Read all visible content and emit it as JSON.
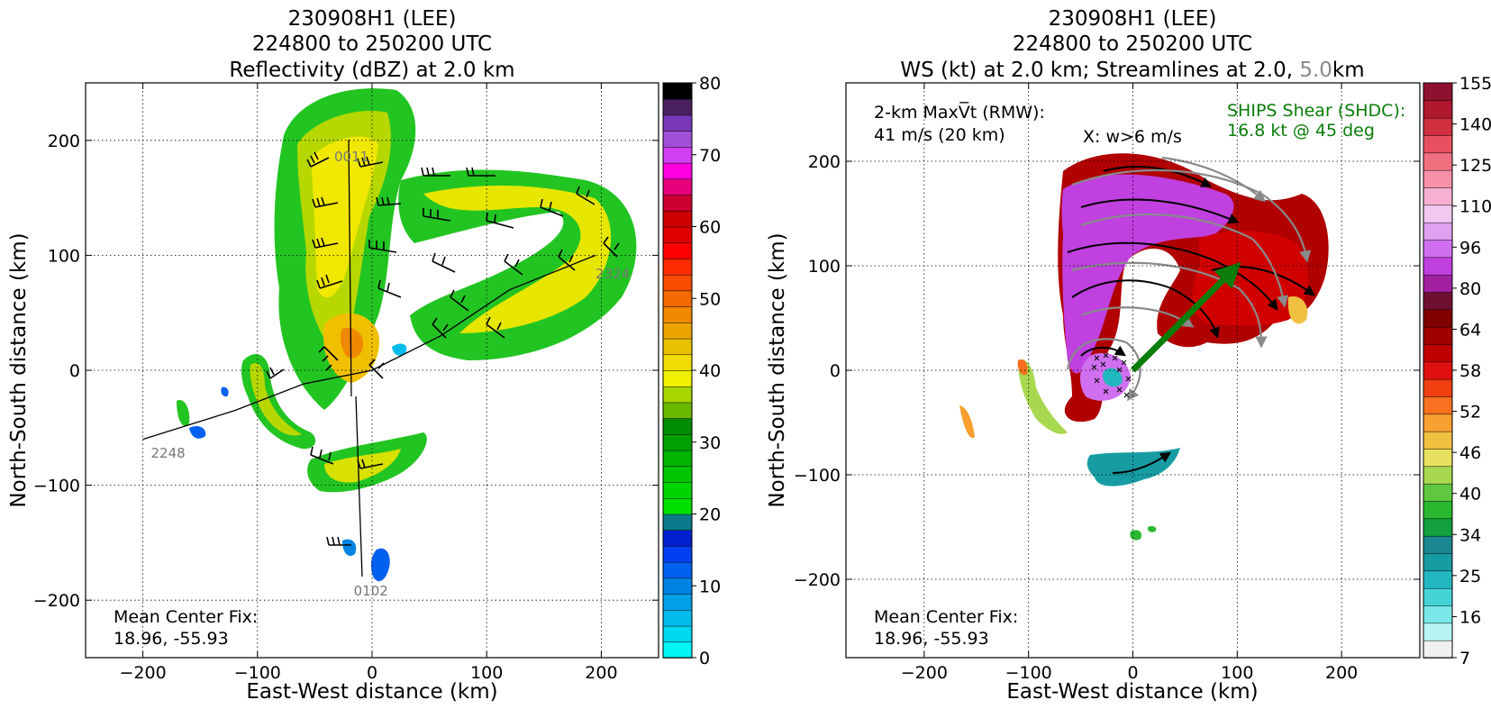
{
  "colors": {
    "tick_grey": "#777777",
    "shear_green": "#0a7d0a",
    "streamline_grey": "#8a8a8a"
  },
  "chart_data": [
    {
      "type": "heatmap",
      "title_lines": [
        "230908H1 (LEE)",
        "224800 to 250200 UTC",
        "Reflectivity (dBZ) at 2.0 km"
      ],
      "xlabel": "East-West distance (km)",
      "ylabel": "North-South distance (km)",
      "xlim": [
        -250,
        250
      ],
      "ylim": [
        -250,
        250
      ],
      "xticks": [
        -200,
        -100,
        0,
        100,
        200
      ],
      "yticks": [
        -200,
        -100,
        0,
        100,
        200
      ],
      "xtick_labels": [
        "−200",
        "−100",
        "0",
        "100",
        "200"
      ],
      "ytick_labels": [
        "−200",
        "−100",
        "0",
        "100",
        "200"
      ],
      "grid": true,
      "colorbar": {
        "label_values": [
          0,
          10,
          20,
          30,
          40,
          50,
          60,
          70,
          80
        ],
        "label_texts": [
          "0",
          "10",
          "20",
          "30",
          "40",
          "50",
          "60",
          "70",
          "80"
        ],
        "colors": [
          "#00f5f5",
          "#00d8f0",
          "#00bcec",
          "#00a0e8",
          "#0084e4",
          "#0060f0",
          "#0040f0",
          "#0020d0",
          "#0a7a8a",
          "#00e000",
          "#00d400",
          "#00c400",
          "#00b400",
          "#00a000",
          "#008c00",
          "#6ab800",
          "#a8d400",
          "#f0f000",
          "#f0dc00",
          "#e8c000",
          "#eca400",
          "#f08800",
          "#f46a00",
          "#f84c00",
          "#fc2c00",
          "#ff0000",
          "#e00000",
          "#cc0000",
          "#cc0030",
          "#e8007c",
          "#ff00e0",
          "#d040f0",
          "#a050d8",
          "#7838b8",
          "#4a2060",
          "#000000"
        ]
      },
      "track_labels": [
        {
          "text": "2248",
          "x": -193,
          "y": -76
        },
        {
          "text": "0102",
          "x": -16,
          "y": -196
        },
        {
          "text": "2324",
          "x": 195,
          "y": 80
        },
        {
          "text": "0011",
          "x": -33,
          "y": 182
        }
      ],
      "track_path": [
        [
          -200,
          -60
        ],
        [
          -120,
          -35
        ],
        [
          -60,
          -12
        ],
        [
          0,
          0
        ],
        [
          60,
          30
        ],
        [
          120,
          70
        ],
        [
          195,
          100
        ]
      ],
      "center_fix_lines": [
        "Mean Center Fix:",
        "18.96, -55.93"
      ]
    },
    {
      "type": "heatmap",
      "title_lines": [
        "230908H1 (LEE)",
        "224800 to 250200 UTC"
      ],
      "title_line3_parts": [
        "WS (kt) at 2.0 km; Streamlines at 2.0, ",
        "5.0",
        "km"
      ],
      "xlabel": "East-West distance (km)",
      "ylabel": "North-South distance (km)",
      "xlim": [
        -275,
        275
      ],
      "ylim": [
        -275,
        275
      ],
      "xticks": [
        -200,
        -100,
        0,
        100,
        200
      ],
      "yticks": [
        -200,
        -100,
        0,
        100,
        200
      ],
      "xtick_labels": [
        "−200",
        "−100",
        "0",
        "100",
        "200"
      ],
      "ytick_labels": [
        "−200",
        "−100",
        "0",
        "100",
        "200"
      ],
      "grid": true,
      "colorbar": {
        "label_values": [
          7,
          16,
          25,
          34,
          40,
          46,
          52,
          58,
          64,
          80,
          96,
          110,
          125,
          140,
          155
        ],
        "label_texts": [
          "7",
          "16",
          "25",
          "34",
          "40",
          "46",
          "52",
          "58",
          "64",
          "80",
          "96",
          "110",
          "125",
          "140",
          "155"
        ],
        "colors": [
          "#f0f0f0",
          "#b8f4f4",
          "#7ae8e8",
          "#44d4d8",
          "#22b8c0",
          "#189ca4",
          "#1a8890",
          "#12a040",
          "#2ab830",
          "#60c840",
          "#a8d850",
          "#e8e060",
          "#f0c040",
          "#f8a030",
          "#f87020",
          "#f04010",
          "#e01010",
          "#c00000",
          "#a00000",
          "#800000",
          "#701030",
          "#a020a0",
          "#c040e0",
          "#d070f0",
          "#e0a0f0",
          "#f0c8f0",
          "#f8b0d0",
          "#f890a8",
          "#f07080",
          "#e85060",
          "#d03040",
          "#b01830",
          "#901030"
        ]
      },
      "annotations": {
        "maxvt_line1": "2-km MaxV̅t (RMW):",
        "maxvt_line2": "41 m/s (20 km)",
        "w_label": "X: w>6 m/s",
        "shear_line1": "SHIPS Shear (SHDC):",
        "shear_line2": "16.8 kt @ 45 deg",
        "center_fix_lines": [
          "Mean Center Fix:",
          "18.96, -55.93"
        ]
      },
      "shear_vector": {
        "from": [
          0,
          0
        ],
        "to": [
          95,
          95
        ]
      }
    }
  ]
}
